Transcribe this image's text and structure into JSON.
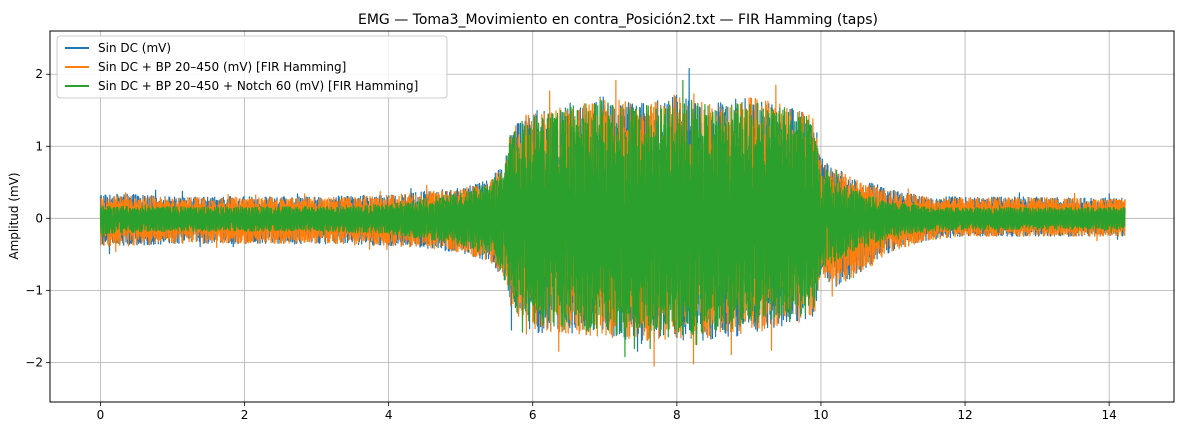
{
  "chart_data": {
    "type": "line",
    "title": "EMG — Toma3_Movimiento en contra_Posición2.txt — FIR Hamming (taps)",
    "xlabel": "",
    "ylabel": "Amplitud (mV)",
    "xlim": [
      -0.7,
      14.9
    ],
    "ylim": [
      -2.55,
      2.6
    ],
    "xticks": [
      0,
      2,
      4,
      6,
      8,
      10,
      12,
      14
    ],
    "yticks": [
      -2,
      -1,
      0,
      1,
      2
    ],
    "grid": true,
    "legend_position": "upper-left",
    "x_max": 14.22,
    "series": [
      {
        "name": "Sin DC (mV)",
        "color": "#1f77b4",
        "envelope": {
          "x": [
            0,
            0.5,
            1,
            2,
            3,
            4,
            4.5,
            5,
            5.4,
            5.6,
            5.7,
            6,
            6.5,
            7,
            7.5,
            8,
            8.5,
            9,
            9.5,
            9.9,
            10.0,
            10.2,
            10.5,
            11,
            11.5,
            12,
            13,
            14,
            14.22
          ],
          "upper": [
            0.34,
            0.33,
            0.3,
            0.3,
            0.3,
            0.33,
            0.38,
            0.42,
            0.55,
            0.75,
            1.3,
            1.5,
            1.6,
            1.7,
            1.6,
            1.75,
            1.6,
            1.7,
            1.6,
            1.45,
            0.85,
            0.7,
            0.55,
            0.4,
            0.3,
            0.3,
            0.3,
            0.28,
            0.28
          ],
          "lower": [
            -0.4,
            -0.38,
            -0.35,
            -0.35,
            -0.35,
            -0.38,
            -0.42,
            -0.48,
            -0.6,
            -0.85,
            -1.3,
            -1.6,
            -1.6,
            -1.65,
            -1.75,
            -1.7,
            -1.7,
            -1.6,
            -1.5,
            -1.4,
            -0.8,
            -0.95,
            -0.8,
            -0.45,
            -0.3,
            -0.25,
            -0.25,
            -0.25,
            -0.25
          ]
        }
      },
      {
        "name": "Sin DC + BP 20–450 (mV) [FIR Hamming]",
        "color": "#ff7f0e",
        "envelope": {
          "x": [
            0,
            0.5,
            1,
            2,
            3,
            4,
            4.5,
            5,
            5.4,
            5.6,
            5.7,
            6,
            6.5,
            7,
            7.5,
            8,
            8.5,
            9,
            9.5,
            9.9,
            10.0,
            10.2,
            10.5,
            11,
            11.5,
            12,
            13,
            14,
            14.22
          ],
          "upper": [
            0.32,
            0.31,
            0.29,
            0.29,
            0.29,
            0.32,
            0.37,
            0.41,
            0.53,
            0.73,
            1.28,
            1.48,
            1.58,
            1.68,
            1.58,
            1.73,
            1.58,
            1.68,
            1.58,
            1.43,
            0.83,
            0.68,
            0.53,
            0.38,
            0.29,
            0.29,
            0.29,
            0.27,
            0.27
          ],
          "lower": [
            -0.4,
            -0.38,
            -0.35,
            -0.35,
            -0.35,
            -0.38,
            -0.42,
            -0.48,
            -0.6,
            -0.85,
            -1.3,
            -1.55,
            -1.6,
            -1.65,
            -1.7,
            -1.7,
            -1.65,
            -1.6,
            -1.5,
            -1.4,
            -0.8,
            -0.95,
            -0.8,
            -0.45,
            -0.3,
            -0.25,
            -0.25,
            -0.25,
            -0.25
          ]
        }
      },
      {
        "name": "Sin DC + BP 20–450 + Notch 60 (mV) [FIR Hamming]",
        "color": "#2ca02c",
        "envelope": {
          "x": [
            0,
            0.5,
            1,
            2,
            3,
            4,
            4.5,
            5,
            5.4,
            5.6,
            5.7,
            6,
            6.5,
            7,
            7.5,
            8,
            8.5,
            9,
            9.5,
            9.9,
            10.0,
            10.2,
            10.5,
            11,
            11.5,
            12,
            13,
            14,
            14.22
          ],
          "upper": [
            0.18,
            0.17,
            0.16,
            0.16,
            0.16,
            0.2,
            0.28,
            0.35,
            0.5,
            0.7,
            1.25,
            1.45,
            1.55,
            1.65,
            1.55,
            1.7,
            1.55,
            1.65,
            1.55,
            1.4,
            0.75,
            0.55,
            0.38,
            0.22,
            0.16,
            0.15,
            0.15,
            0.15,
            0.15
          ],
          "lower": [
            -0.22,
            -0.2,
            -0.18,
            -0.18,
            -0.18,
            -0.22,
            -0.3,
            -0.38,
            -0.55,
            -0.8,
            -1.25,
            -1.5,
            -1.55,
            -1.6,
            -1.65,
            -1.65,
            -1.6,
            -1.55,
            -1.45,
            -1.35,
            -0.7,
            -0.6,
            -0.45,
            -0.25,
            -0.18,
            -0.16,
            -0.16,
            -0.16,
            -0.16
          ]
        }
      }
    ]
  }
}
